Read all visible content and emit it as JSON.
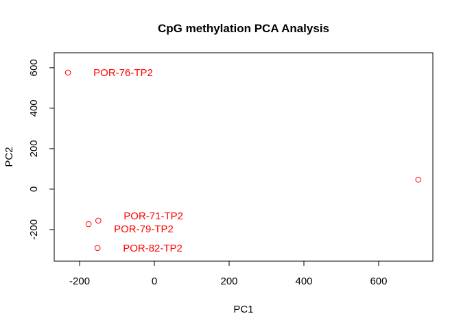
{
  "chart_data": {
    "type": "scatter",
    "title": "CpG methylation PCA Analysis",
    "xlabel": "PC1",
    "ylabel": "PC2",
    "xlim": [
      -268,
      745
    ],
    "ylim": [
      -356,
      674
    ],
    "xticks": [
      -200,
      0,
      200,
      400,
      600
    ],
    "yticks": [
      -200,
      0,
      200,
      400,
      600
    ],
    "point_color": "#ff0000",
    "grid": false,
    "points": [
      {
        "x": -231,
        "y": 576,
        "label": "POR-76-TP2"
      },
      {
        "x": -150,
        "y": -156,
        "label": "POR-71-TP2"
      },
      {
        "x": -176,
        "y": -173,
        "label": "POR-79-TP2"
      },
      {
        "x": -152,
        "y": -291,
        "label": "POR-82-TP2"
      },
      {
        "x": 706,
        "y": 47,
        "label": ""
      }
    ]
  }
}
